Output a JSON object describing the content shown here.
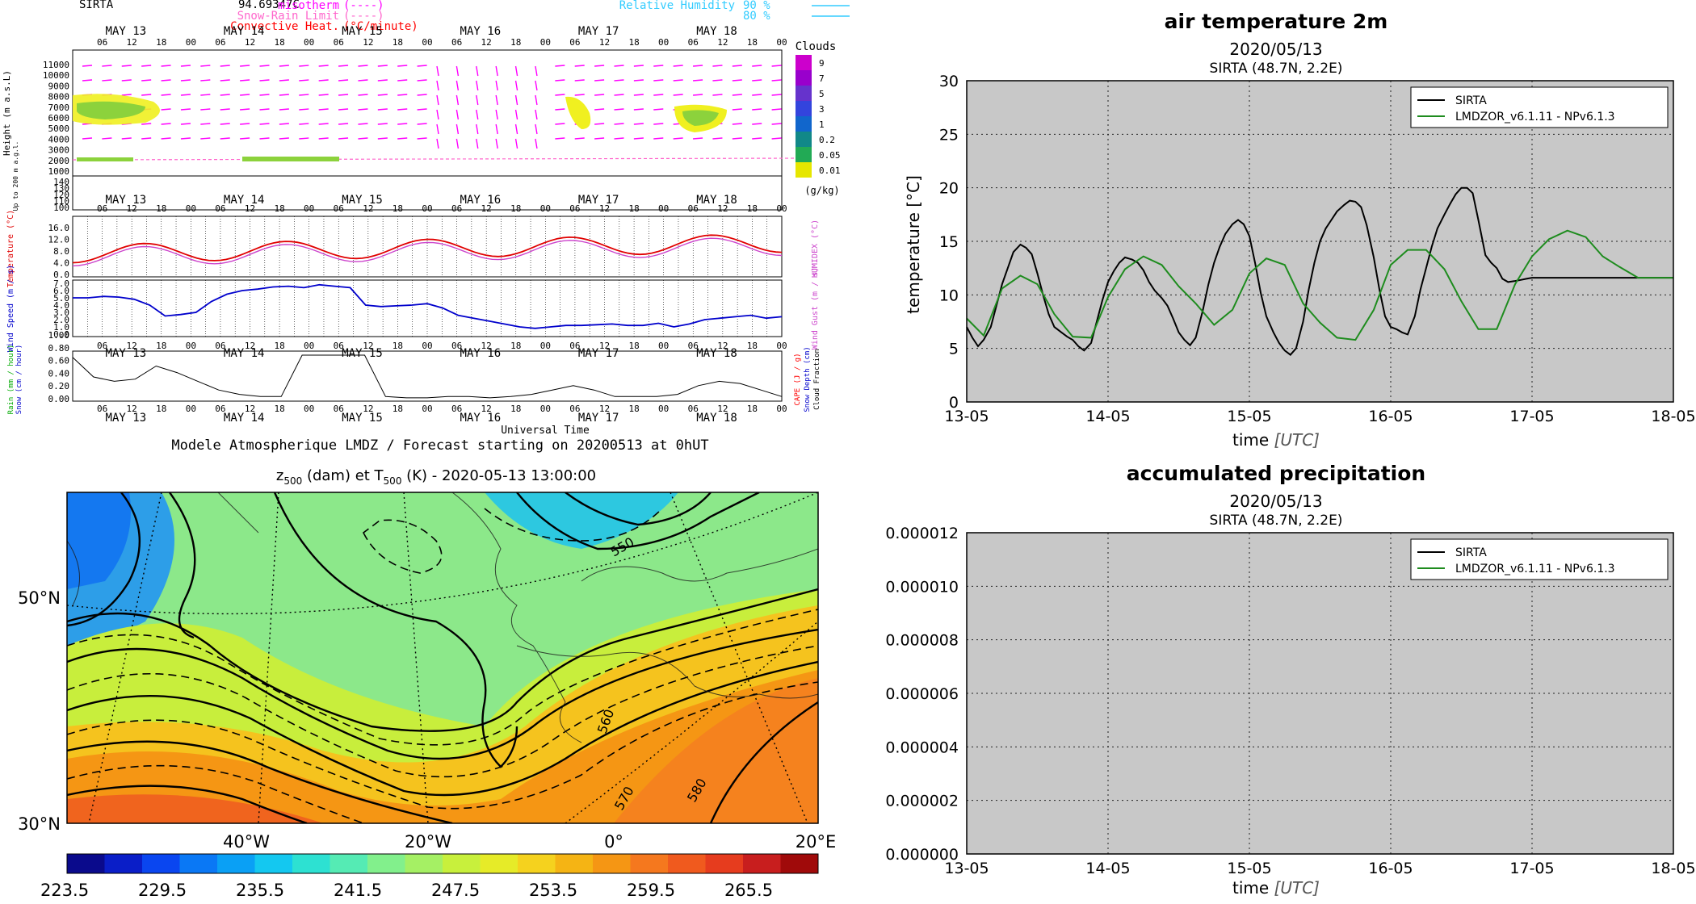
{
  "meteogram": {
    "station": "SIRTA",
    "station_value": "94.69347C",
    "legend_left": [
      {
        "label": "misotherm",
        "sym": "(----)",
        "color": "#ff00ff"
      },
      {
        "label": "Snow-Rain Limit",
        "sym": "(----)",
        "color": "#ff66cc"
      },
      {
        "label": "Convective Heat.",
        "sym": "(°C/minute)",
        "color": "#ff0000"
      }
    ],
    "legend_right": [
      {
        "label": "Relative Humidity",
        "sym": "90 %",
        "color": "#33ccff"
      },
      {
        "label": "",
        "sym": "80 %",
        "color": "#33ccff"
      }
    ],
    "days": [
      "MAY 13",
      "MAY 14",
      "MAY 15",
      "MAY 16",
      "MAY 17",
      "MAY 18"
    ],
    "hour_ticks": [
      "06",
      "12",
      "18",
      "00"
    ],
    "clouds_title": "Clouds",
    "clouds_levels": [
      "9",
      "7",
      "5",
      "3",
      "1",
      "0.2",
      "0.05",
      "0.01"
    ],
    "clouds_units": "(g/kg)",
    "height_axis_title": "Height (m a.s.L)",
    "height_ticks": [
      "11000",
      "10000",
      "9000",
      "8000",
      "7000",
      "6000",
      "5000",
      "4000",
      "3000",
      "2000",
      "1000"
    ],
    "low_axis_title": "Up to 200 m a.g.l.",
    "low_ticks": [
      "140",
      "130",
      "120",
      "110",
      "100"
    ],
    "temp_axis_title": "Temperature (°C)",
    "temp_ticks": [
      "16.0",
      "12.0",
      "8.0",
      "4.0",
      "0.0"
    ],
    "humidex_title": "HUMIDEX (°C)",
    "wind_axis_title": "Wind Speed (m / s)",
    "wind_ticks": [
      "7.0",
      "6.0",
      "5.0",
      "4.0",
      "3.0",
      "2.0",
      "1.0",
      "0.0"
    ],
    "gust_title": "Wind Gust (m / s)",
    "rain_ticks": [
      "1.00",
      "0.80",
      "0.60",
      "0.40",
      "0.20",
      "0.00"
    ],
    "rain_title_1": "Rain (mm / hour)",
    "rain_title_2": "Snow (cm / hour)",
    "cape_title_1": "CAPE (J / g)",
    "cape_title_2": "Snow Depth (cm)",
    "cape_title_3": "Cloud Fraction",
    "time_label": "Universal Time",
    "footer": "Modele Atmospherique LMDZ / Forecast starting on 20200513 at 0hUT"
  },
  "map": {
    "title_prefix": "z",
    "title_sub1": "500",
    "title_mid": " (dam) et T",
    "title_sub2": "500",
    "title_suffix": " (K) - 2020-05-13 13:00:00",
    "lat_labels": [
      "50°N",
      "30°N"
    ],
    "lon_labels": [
      "40°W",
      "20°W",
      "0°",
      "20°E"
    ],
    "contour_labels": [
      "550",
      "560",
      "570",
      "580"
    ],
    "colorbar_ticks": [
      "223.5",
      "229.5",
      "235.5",
      "241.5",
      "247.5",
      "253.5",
      "259.5",
      "265.5"
    ],
    "colorbar_colors": [
      "#0a0a8c",
      "#0a1ec8",
      "#0a46f0",
      "#0a78f5",
      "#0aa0f5",
      "#14c8f0",
      "#2de1d2",
      "#55ebb4",
      "#82f08c",
      "#a5f064",
      "#c8f03c",
      "#e6eb28",
      "#f5d21e",
      "#f5b414",
      "#f59614",
      "#f5781e",
      "#f05a1e",
      "#e63c1e",
      "#c81e1e",
      "#a00a0a"
    ]
  },
  "colors": {
    "sirta": "#000000",
    "model": "#1e8c1e",
    "plot_bg": "#c8c8c8",
    "temp_red": "#e00000",
    "humidex": "#cc44cc",
    "wind": "#0000cc"
  },
  "chart_data": [
    {
      "type": "line",
      "title": "air temperature 2m",
      "subtitle": "2020/05/13",
      "subtitle2": "SIRTA (48.7N, 2.2E)",
      "xlabel": "time",
      "xlabel_unit": "[UTC]",
      "ylabel": "temperature [°C]",
      "ylim": [
        0,
        30
      ],
      "yticks": [
        "0",
        "5",
        "10",
        "15",
        "20",
        "25",
        "30"
      ],
      "xticks": [
        "13-05",
        "14-05",
        "15-05",
        "16-05",
        "17-05",
        "18-05"
      ],
      "grid": true,
      "legend": "top-right",
      "series": [
        {
          "name": "SIRTA",
          "x": [
            0,
            0.04,
            0.08,
            0.12,
            0.17,
            0.21,
            0.25,
            0.29,
            0.33,
            0.38,
            0.42,
            0.46,
            0.5,
            0.54,
            0.58,
            0.62,
            0.67,
            0.71,
            0.75,
            0.79,
            0.83,
            0.88,
            0.92,
            0.96,
            1,
            1.04,
            1.08,
            1.12,
            1.17,
            1.21,
            1.25,
            1.29,
            1.33,
            1.38,
            1.42,
            1.46,
            1.5,
            1.54,
            1.58,
            1.62,
            1.67,
            1.71,
            1.75,
            1.79,
            1.83,
            1.88,
            1.92,
            1.96,
            2,
            2.04,
            2.08,
            2.12,
            2.17,
            2.21,
            2.25,
            2.29,
            2.33,
            2.38,
            2.42,
            2.46,
            2.5,
            2.54,
            2.58,
            2.62,
            2.67,
            2.71,
            2.75,
            2.79,
            2.83,
            2.88,
            2.92,
            2.96,
            3,
            3.04,
            3.08,
            3.12,
            3.17,
            3.21,
            3.25,
            3.29,
            3.33,
            3.38,
            3.42,
            3.46,
            3.5,
            3.54,
            3.58,
            3.62,
            3.67,
            3.71,
            3.75,
            3.79,
            3.83,
            3.88,
            3.92,
            3.96,
            4,
            4.04,
            4.08,
            4.12,
            4.17,
            4.21,
            4.25,
            4.29,
            4.33,
            4.38,
            4.42,
            4.46,
            4.5,
            4.54,
            4.58,
            4.62,
            4.67,
            4.71,
            4.75,
            4.79,
            4.83,
            4.88,
            4.92,
            4.96,
            5
          ],
          "values": [
            7,
            6,
            5.2,
            5.8,
            7,
            9,
            11,
            12.5,
            14,
            14.7,
            14.4,
            13.8,
            12,
            10,
            8.2,
            7,
            6.5,
            6.1,
            5.8,
            5.2,
            4.8,
            5.5,
            7.5,
            9.5,
            11.2,
            12.2,
            13,
            13.5,
            13.3,
            13,
            12.3,
            11.2,
            10.4,
            9.7,
            9,
            7.8,
            6.5,
            5.8,
            5.3,
            6,
            8.5,
            11,
            13,
            14.5,
            15.7,
            16.6,
            17,
            16.6,
            15.5,
            13,
            10.2,
            8,
            6.5,
            5.5,
            4.8,
            4.4,
            5,
            7.5,
            10.5,
            13,
            15,
            16.2,
            17,
            17.8,
            18.4,
            18.8,
            18.7,
            18.2,
            16.5,
            13.5,
            10.5,
            8,
            7,
            6.8,
            6.5,
            6.3,
            8,
            10.5,
            12.5,
            14.5,
            16.2,
            17.5,
            18.5,
            19.4,
            20,
            20,
            19.5,
            17,
            13.7,
            13,
            12.5,
            11.5,
            11.2,
            11.3,
            11.4,
            11.5,
            11.6,
            11.6,
            11.6,
            11.6,
            11.6,
            11.6,
            11.6,
            11.6,
            11.6,
            11.6,
            11.6,
            11.6,
            11.6,
            11.6,
            11.6,
            11.6,
            11.6,
            11.6,
            11.6,
            11.6,
            11.6,
            11.6,
            11.6,
            11.6,
            11.6
          ]
        },
        {
          "name": "LMDZOR_v6.1.11 - NPv6.1.3",
          "x": [
            0,
            0.12,
            0.25,
            0.38,
            0.5,
            0.62,
            0.75,
            0.88,
            1,
            1.12,
            1.25,
            1.38,
            1.5,
            1.62,
            1.75,
            1.88,
            2,
            2.12,
            2.25,
            2.38,
            2.5,
            2.62,
            2.75,
            2.88,
            3,
            3.12,
            3.25,
            3.38,
            3.5,
            3.62,
            3.75,
            3.88,
            4,
            4.12,
            4.25,
            4.38,
            4.5,
            4.62,
            4.75,
            4.88,
            5
          ],
          "values": [
            7.8,
            6.2,
            10.6,
            11.8,
            11,
            8.2,
            6.1,
            6,
            9.8,
            12.4,
            13.6,
            12.8,
            10.8,
            9.2,
            7.2,
            8.6,
            12,
            13.4,
            12.8,
            9.2,
            7.4,
            6,
            5.8,
            8.6,
            12.8,
            14.2,
            14.2,
            12.4,
            9.4,
            6.8,
            6.8,
            11,
            13.6,
            15.2,
            16,
            15.4,
            13.6,
            12.6,
            11.6,
            11.6,
            11.6
          ]
        }
      ]
    },
    {
      "type": "line",
      "title": "accumulated precipitation",
      "subtitle": "2020/05/13",
      "subtitle2": "SIRTA (48.7N, 2.2E)",
      "xlabel": "time",
      "xlabel_unit": "[UTC]",
      "ylabel": "",
      "ylim": [
        0,
        1.2e-05
      ],
      "yticks": [
        "0.000000",
        "0.000002",
        "0.000004",
        "0.000006",
        "0.000008",
        "0.000010",
        "0.000012"
      ],
      "xticks": [
        "13-05",
        "14-05",
        "15-05",
        "16-05",
        "17-05",
        "18-05"
      ],
      "grid": true,
      "legend": "top-right",
      "series": [
        {
          "name": "SIRTA",
          "values": []
        },
        {
          "name": "LMDZOR_v6.1.11 - NPv6.1.3",
          "values": []
        }
      ]
    }
  ]
}
